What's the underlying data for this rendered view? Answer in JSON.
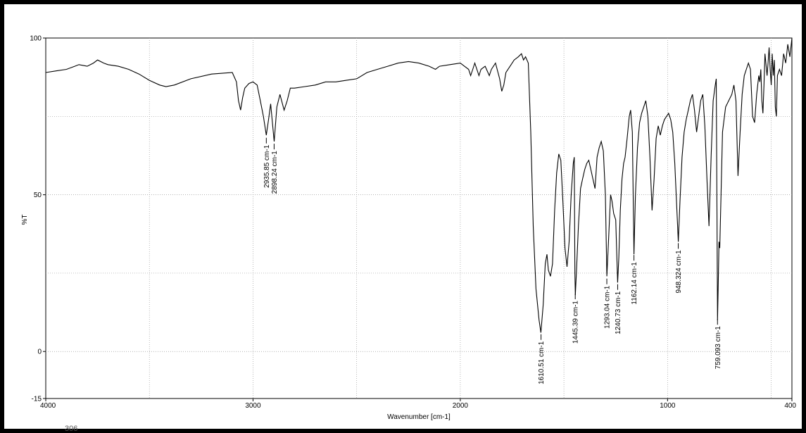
{
  "chart_data": {
    "type": "line",
    "xlabel": "Wavenumber [cm-1]",
    "ylabel": "%T",
    "xlim": [
      4000,
      400
    ],
    "ylim": [
      -15,
      100
    ],
    "x_reversed": true,
    "xticks": [
      4000,
      3000,
      2000,
      1000,
      400
    ],
    "yticks": [
      100,
      50,
      0,
      -15
    ],
    "grid": true,
    "series": [
      {
        "points": [
          [
            4000,
            89
          ],
          [
            3950,
            89.5
          ],
          [
            3900,
            90
          ],
          [
            3860,
            91
          ],
          [
            3840,
            91.5
          ],
          [
            3800,
            91
          ],
          [
            3770,
            92
          ],
          [
            3750,
            93
          ],
          [
            3720,
            92
          ],
          [
            3700,
            91.5
          ],
          [
            3650,
            91
          ],
          [
            3600,
            90
          ],
          [
            3550,
            88.5
          ],
          [
            3500,
            86.5
          ],
          [
            3450,
            85
          ],
          [
            3420,
            84.5
          ],
          [
            3380,
            85
          ],
          [
            3300,
            87
          ],
          [
            3200,
            88.5
          ],
          [
            3100,
            89
          ],
          [
            3080,
            86
          ],
          [
            3070,
            80
          ],
          [
            3060,
            77
          ],
          [
            3050,
            81
          ],
          [
            3040,
            84
          ],
          [
            3020,
            85.5
          ],
          [
            3000,
            86
          ],
          [
            2980,
            85
          ],
          [
            2965,
            80
          ],
          [
            2950,
            75
          ],
          [
            2936,
            69
          ],
          [
            2925,
            74
          ],
          [
            2915,
            79
          ],
          [
            2905,
            72
          ],
          [
            2898,
            67
          ],
          [
            2885,
            78
          ],
          [
            2870,
            82
          ],
          [
            2850,
            77
          ],
          [
            2835,
            80
          ],
          [
            2820,
            84
          ],
          [
            2800,
            84
          ],
          [
            2750,
            84.5
          ],
          [
            2700,
            85
          ],
          [
            2650,
            86
          ],
          [
            2600,
            86
          ],
          [
            2550,
            86.5
          ],
          [
            2500,
            87
          ],
          [
            2450,
            89
          ],
          [
            2400,
            90
          ],
          [
            2350,
            91
          ],
          [
            2300,
            92
          ],
          [
            2250,
            92.5
          ],
          [
            2200,
            92
          ],
          [
            2150,
            91
          ],
          [
            2120,
            90
          ],
          [
            2100,
            91
          ],
          [
            2050,
            91.5
          ],
          [
            2000,
            92
          ],
          [
            1980,
            91
          ],
          [
            1960,
            90
          ],
          [
            1950,
            88
          ],
          [
            1940,
            90
          ],
          [
            1930,
            92
          ],
          [
            1910,
            88
          ],
          [
            1900,
            90
          ],
          [
            1880,
            91
          ],
          [
            1860,
            88
          ],
          [
            1850,
            90
          ],
          [
            1830,
            92
          ],
          [
            1810,
            87
          ],
          [
            1800,
            83
          ],
          [
            1790,
            85
          ],
          [
            1780,
            89
          ],
          [
            1760,
            91
          ],
          [
            1740,
            93
          ],
          [
            1720,
            94
          ],
          [
            1705,
            95
          ],
          [
            1695,
            93
          ],
          [
            1685,
            94
          ],
          [
            1672,
            92
          ],
          [
            1660,
            70
          ],
          [
            1648,
            40
          ],
          [
            1635,
            20
          ],
          [
            1620,
            10
          ],
          [
            1611,
            6
          ],
          [
            1600,
            15
          ],
          [
            1590,
            28
          ],
          [
            1582,
            31
          ],
          [
            1575,
            26
          ],
          [
            1565,
            24
          ],
          [
            1555,
            28
          ],
          [
            1545,
            45
          ],
          [
            1535,
            57
          ],
          [
            1525,
            63
          ],
          [
            1515,
            61
          ],
          [
            1505,
            48
          ],
          [
            1495,
            33
          ],
          [
            1485,
            27
          ],
          [
            1475,
            35
          ],
          [
            1465,
            50
          ],
          [
            1455,
            60
          ],
          [
            1450,
            62
          ],
          [
            1447,
            25
          ],
          [
            1445,
            18
          ],
          [
            1440,
            25
          ],
          [
            1430,
            40
          ],
          [
            1420,
            52
          ],
          [
            1410,
            55
          ],
          [
            1400,
            58
          ],
          [
            1390,
            60
          ],
          [
            1380,
            61
          ],
          [
            1370,
            58
          ],
          [
            1360,
            55
          ],
          [
            1350,
            52
          ],
          [
            1340,
            62
          ],
          [
            1330,
            65
          ],
          [
            1320,
            67
          ],
          [
            1310,
            64
          ],
          [
            1300,
            50
          ],
          [
            1293,
            24
          ],
          [
            1285,
            35
          ],
          [
            1275,
            50
          ],
          [
            1268,
            48
          ],
          [
            1260,
            44
          ],
          [
            1250,
            42
          ],
          [
            1241,
            22
          ],
          [
            1235,
            30
          ],
          [
            1228,
            45
          ],
          [
            1220,
            55
          ],
          [
            1212,
            60
          ],
          [
            1205,
            62
          ],
          [
            1195,
            68
          ],
          [
            1185,
            75
          ],
          [
            1178,
            77
          ],
          [
            1170,
            70
          ],
          [
            1162,
            31
          ],
          [
            1155,
            50
          ],
          [
            1145,
            65
          ],
          [
            1135,
            73
          ],
          [
            1125,
            76
          ],
          [
            1115,
            78
          ],
          [
            1105,
            80
          ],
          [
            1095,
            75
          ],
          [
            1085,
            62
          ],
          [
            1075,
            45
          ],
          [
            1065,
            55
          ],
          [
            1055,
            68
          ],
          [
            1045,
            72
          ],
          [
            1035,
            69
          ],
          [
            1025,
            72
          ],
          [
            1015,
            74
          ],
          [
            1005,
            75
          ],
          [
            995,
            76
          ],
          [
            985,
            74
          ],
          [
            975,
            70
          ],
          [
            965,
            60
          ],
          [
            955,
            45
          ],
          [
            948,
            35
          ],
          [
            940,
            48
          ],
          [
            930,
            62
          ],
          [
            920,
            70
          ],
          [
            910,
            74
          ],
          [
            900,
            77
          ],
          [
            890,
            80
          ],
          [
            880,
            82
          ],
          [
            870,
            77
          ],
          [
            860,
            70
          ],
          [
            850,
            75
          ],
          [
            840,
            80
          ],
          [
            830,
            82
          ],
          [
            820,
            72
          ],
          [
            810,
            55
          ],
          [
            800,
            40
          ],
          [
            790,
            62
          ],
          [
            780,
            80
          ],
          [
            770,
            85
          ],
          [
            765,
            87
          ],
          [
            762,
            50
          ],
          [
            759,
            10
          ],
          [
            756,
            20
          ],
          [
            752,
            35
          ],
          [
            748,
            33
          ],
          [
            742,
            50
          ],
          [
            735,
            70
          ],
          [
            720,
            78
          ],
          [
            705,
            80
          ],
          [
            690,
            82
          ],
          [
            680,
            85
          ],
          [
            670,
            80
          ],
          [
            660,
            56
          ],
          [
            650,
            70
          ],
          [
            640,
            82
          ],
          [
            630,
            88
          ],
          [
            620,
            90
          ],
          [
            610,
            92
          ],
          [
            600,
            90
          ],
          [
            590,
            75
          ],
          [
            580,
            73
          ],
          [
            570,
            82
          ],
          [
            560,
            88
          ],
          [
            555,
            86
          ],
          [
            550,
            90
          ],
          [
            545,
            80
          ],
          [
            540,
            76
          ],
          [
            535,
            85
          ],
          [
            530,
            95
          ],
          [
            520,
            88
          ],
          [
            515,
            92
          ],
          [
            510,
            97
          ],
          [
            505,
            90
          ],
          [
            500,
            85
          ],
          [
            495,
            95
          ],
          [
            490,
            88
          ],
          [
            485,
            93
          ],
          [
            480,
            78
          ],
          [
            475,
            75
          ],
          [
            470,
            88
          ],
          [
            460,
            90
          ],
          [
            450,
            88
          ],
          [
            440,
            95
          ],
          [
            430,
            92
          ],
          [
            420,
            98
          ],
          [
            410,
            94
          ],
          [
            400,
            100
          ]
        ]
      }
    ],
    "annotations": [
      {
        "x": 2935.85,
        "label": "2935.85 cm-1"
      },
      {
        "x": 2898.24,
        "label": "2898.24 cm-1"
      },
      {
        "x": 1610.51,
        "label": "1610.51 cm-1"
      },
      {
        "x": 1445.39,
        "label": "1445.39 cm-1"
      },
      {
        "x": 1293.04,
        "label": "1293.04 cm-1"
      },
      {
        "x": 1240.73,
        "label": "1240.73 cm-1"
      },
      {
        "x": 1162.14,
        "label": "1162.14 cm-1"
      },
      {
        "x": 948.324,
        "label": "948.324 cm-1"
      },
      {
        "x": 759.093,
        "label": "759.093 cm-1"
      }
    ]
  },
  "footer_fragment": "306",
  "colors": {
    "frame": "#000000",
    "line": "#000000",
    "grid": "#9a9a9a"
  }
}
